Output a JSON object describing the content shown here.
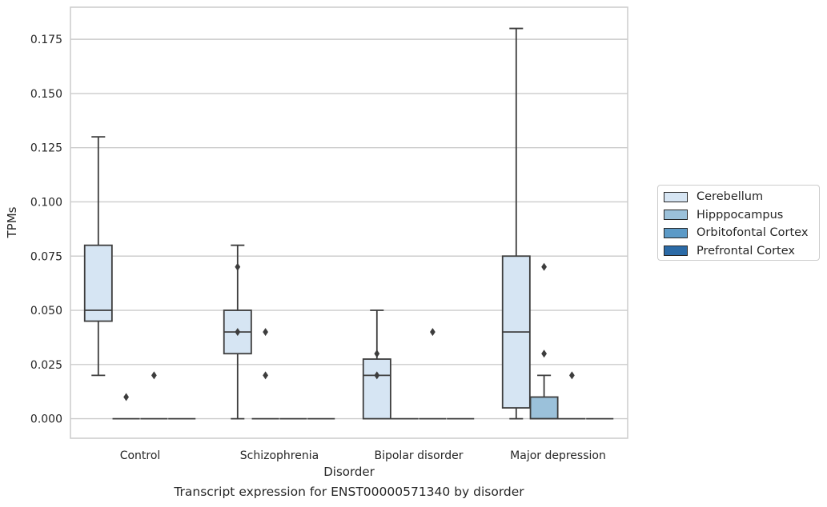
{
  "chart_data": {
    "type": "boxplot",
    "title": "Transcript expression for ENST00000571340 by disorder",
    "xlabel": "Disorder",
    "ylabel": "TPMs",
    "ylim": [
      -0.009,
      0.1898
    ],
    "yticks": [
      "0.000",
      "0.025",
      "0.050",
      "0.075",
      "0.100",
      "0.125",
      "0.150",
      "0.175"
    ],
    "grid": true,
    "legend_position": "right",
    "categories": [
      "Control",
      "Schizophrenia",
      "Bipolar disorder",
      "Major depression"
    ],
    "series": [
      {
        "name": "Cerebellum",
        "color": "#d6e5f3",
        "boxes": [
          {
            "whislo": 0.02,
            "q1": 0.045,
            "med": 0.05,
            "q3": 0.08,
            "whishi": 0.13,
            "fliers": []
          },
          {
            "whislo": 0.0,
            "q1": 0.03,
            "med": 0.04,
            "q3": 0.05,
            "whishi": 0.08,
            "fliers": [
              0.07,
              0.04
            ]
          },
          {
            "whislo": 0.0,
            "q1": 0.0,
            "med": 0.02,
            "q3": 0.0275,
            "whishi": 0.05,
            "fliers": [
              0.03,
              0.02
            ]
          },
          {
            "whislo": 0.0,
            "q1": 0.005,
            "med": 0.04,
            "q3": 0.075,
            "whishi": 0.18,
            "fliers": []
          }
        ]
      },
      {
        "name": "Hipppocampus",
        "color": "#9bc1da",
        "boxes": [
          {
            "whislo": 0,
            "q1": 0,
            "med": 0,
            "q3": 0,
            "whishi": 0,
            "fliers": [
              0.01
            ]
          },
          {
            "whislo": 0,
            "q1": 0,
            "med": 0,
            "q3": 0,
            "whishi": 0,
            "fliers": [
              0.04,
              0.02
            ]
          },
          {
            "whislo": 0,
            "q1": 0,
            "med": 0,
            "q3": 0,
            "whishi": 0,
            "fliers": []
          },
          {
            "whislo": 0,
            "q1": 0,
            "med": 0,
            "q3": 0.01,
            "whishi": 0.02,
            "fliers": [
              0.07,
              0.03
            ]
          }
        ]
      },
      {
        "name": "Orbitofontal Cortex",
        "color": "#5c9ac7",
        "boxes": [
          {
            "whislo": 0,
            "q1": 0,
            "med": 0,
            "q3": 0,
            "whishi": 0,
            "fliers": [
              0.02
            ]
          },
          {
            "whislo": 0,
            "q1": 0,
            "med": 0,
            "q3": 0,
            "whishi": 0,
            "fliers": []
          },
          {
            "whislo": 0,
            "q1": 0,
            "med": 0,
            "q3": 0,
            "whishi": 0,
            "fliers": [
              0.04
            ]
          },
          {
            "whislo": 0,
            "q1": 0,
            "med": 0,
            "q3": 0,
            "whishi": 0,
            "fliers": [
              0.02
            ]
          }
        ]
      },
      {
        "name": "Prefrontal Cortex",
        "color": "#2b6aa6",
        "boxes": [
          {
            "whislo": 0,
            "q1": 0,
            "med": 0,
            "q3": 0,
            "whishi": 0,
            "fliers": []
          },
          {
            "whislo": 0,
            "q1": 0,
            "med": 0,
            "q3": 0,
            "whishi": 0,
            "fliers": []
          },
          {
            "whislo": 0,
            "q1": 0,
            "med": 0,
            "q3": 0,
            "whishi": 0,
            "fliers": []
          },
          {
            "whislo": 0,
            "q1": 0,
            "med": 0,
            "q3": 0,
            "whishi": 0,
            "fliers": []
          }
        ]
      }
    ]
  }
}
